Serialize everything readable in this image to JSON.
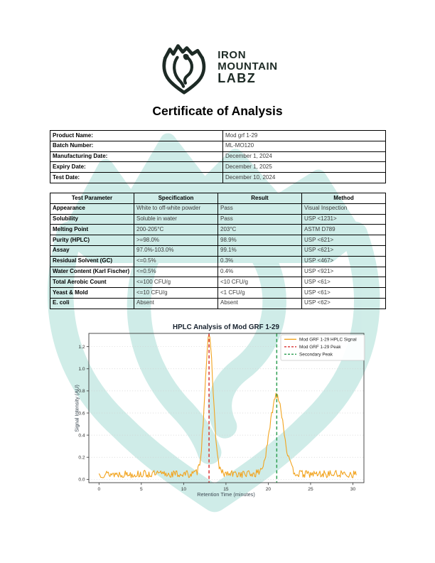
{
  "page": {
    "background": "#ffffff",
    "watermark_color": "#7fccc1"
  },
  "logo": {
    "icon": "iron-mountain-shield-bear",
    "brand_line1": "IRON",
    "brand_line2": "MOUNTAIN",
    "brand_line3": "LABZ",
    "color": "#1d2a25"
  },
  "title": "Certificate of Analysis",
  "product_info": {
    "rows": [
      {
        "label": "Product Name:",
        "value": "Mod grf 1-29"
      },
      {
        "label": "Batch Number:",
        "value": "ML-MO120"
      },
      {
        "label": "Manufacturing Date:",
        "value": "December 1, 2024"
      },
      {
        "label": "Expiry Date:",
        "value": "December 1, 2025"
      },
      {
        "label": "Test Date:",
        "value": "December 10, 2024"
      }
    ]
  },
  "results_table": {
    "headers": [
      "Test Parameter",
      "Specification",
      "Result",
      "Method"
    ],
    "rows": [
      [
        "Appearance",
        "White to off-white powder",
        "Pass",
        "Visual Inspection"
      ],
      [
        "Solubility",
        "Soluble in water",
        "Pass",
        "USP <1231>"
      ],
      [
        "Melting Point",
        "200-205°C",
        "203°C",
        "ASTM D789"
      ],
      [
        "Purity (HPLC)",
        ">=98.0%",
        "98.9%",
        "USP <621>"
      ],
      [
        "Assay",
        "97.0%-103.0%",
        "99.1%",
        "USP <621>"
      ],
      [
        "Residual Solvent (GC)",
        "<=0.5%",
        "0.3%",
        "USP <467>"
      ],
      [
        "Water Content (Karl Fischer)",
        "<=0.5%",
        "0.4%",
        "USP <921>"
      ],
      [
        "Total Aerobic Count",
        "<=100 CFU/g",
        "<10 CFU/g",
        "USP <61>"
      ],
      [
        "Yeast & Mold",
        "<=10 CFU/g",
        "<1 CFU/g",
        "USP <61>"
      ],
      [
        "E. coli",
        "Absent",
        "Absent",
        "USP <62>"
      ]
    ]
  },
  "chart_data": {
    "type": "line",
    "title": "HPLC Analysis of Mod GRF 1-29",
    "xlabel": "Retention Time (minutes)",
    "ylabel": "Signal Intensity (AU)",
    "xlim": [
      -1.2,
      31.3
    ],
    "ylim": [
      -0.03,
      1.32
    ],
    "xticks": [
      0,
      5,
      10,
      15,
      20,
      25,
      30
    ],
    "yticks": [
      0.0,
      0.2,
      0.4,
      0.6,
      0.8,
      1.0,
      1.2
    ],
    "grid": "horizontal-dotted",
    "legend_position": "upper-right",
    "series": [
      {
        "name": "Mod GRF 1-29 HPLC Signal",
        "color": "#F2A41F",
        "style": "solid",
        "model": {
          "baseline": 0.048,
          "noise_amplitude": 0.034,
          "peaks": [
            {
              "center": 13,
              "height": 1.23,
              "sigma": 0.5
            },
            {
              "center": 21,
              "height": 0.72,
              "sigma": 0.78
            }
          ],
          "x_start": 0,
          "x_end": 30.4,
          "x_step": 0.1,
          "seed": 13
        }
      }
    ],
    "vlines": [
      {
        "name": "Mod GRF 1-29 Peak",
        "x": 13,
        "color": "#D93434",
        "style": "dashed"
      },
      {
        "name": "Secondary Peak",
        "x": 21,
        "color": "#2E9E52",
        "style": "dashed"
      }
    ],
    "legend": [
      "Mod GRF 1-29 HPLC Signal",
      "Mod GRF 1-29 Peak",
      "Secondary Peak"
    ],
    "peak_summary": [
      {
        "retention_time_min": 13,
        "height_au": 1.28,
        "label": "Mod GRF 1-29 Peak"
      },
      {
        "retention_time_min": 21,
        "height_au": 0.78,
        "label": "Secondary Peak"
      }
    ]
  }
}
